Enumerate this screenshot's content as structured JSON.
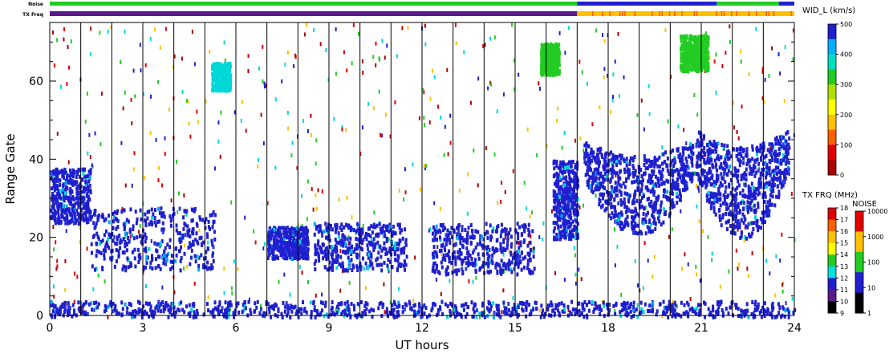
{
  "chart_data": {
    "type": "heatmap",
    "xlabel": "UT hours",
    "ylabel": "Range Gate",
    "xlim": [
      0,
      24
    ],
    "ylim": [
      0,
      75
    ],
    "x_ticks": [
      0,
      3,
      6,
      9,
      12,
      15,
      18,
      21,
      24
    ],
    "y_ticks": [
      0,
      20,
      40,
      60
    ],
    "x_tick_labels": [
      "0",
      "3",
      "6",
      "9",
      "12",
      "15",
      "18",
      "21",
      "24"
    ],
    "y_tick_labels": [
      "0",
      "20",
      "40",
      "60"
    ],
    "scan_line_hours": [
      1,
      2,
      3,
      4,
      5,
      6,
      7,
      8,
      9,
      10,
      11,
      12,
      13,
      14,
      15,
      16,
      17,
      18,
      19,
      20,
      21,
      22,
      23
    ],
    "top_bars": {
      "noise_label": "Noise",
      "txfreq_label": "TX Freq",
      "noise_segments": [
        {
          "start": 0,
          "end": 17,
          "color": "#22cc22"
        },
        {
          "start": 17,
          "end": 21.5,
          "color": "#1f1fd0"
        },
        {
          "start": 21.5,
          "end": 23.5,
          "color": "#22cc22"
        },
        {
          "start": 23.5,
          "end": 24,
          "color": "#1f1fd0"
        }
      ],
      "txfreq_segments": [
        {
          "start": 0,
          "end": 17,
          "color": "#5a1a8c"
        },
        {
          "start": 17,
          "end": 24,
          "color": "#ffc000"
        }
      ]
    },
    "regions": [
      {
        "name": "early-cluster",
        "x": [
          0,
          1.3
        ],
        "y": [
          24,
          38
        ],
        "color": "#1f1fd0"
      },
      {
        "name": "band-1",
        "x": [
          1.3,
          5.3
        ],
        "y": [
          12,
          28
        ],
        "color": "#1f1fd0"
      },
      {
        "name": "band-2",
        "x": [
          7,
          8.3
        ],
        "y": [
          15,
          23
        ],
        "color": "#1f1fd0"
      },
      {
        "name": "band-3",
        "x": [
          8.5,
          11.5
        ],
        "y": [
          12,
          24
        ],
        "color": "#1f1fd0"
      },
      {
        "name": "band-4",
        "x": [
          12.3,
          15.6
        ],
        "y": [
          11,
          24
        ],
        "color": "#1f1fd0"
      },
      {
        "name": "late-cluster",
        "x": [
          16.2,
          17
        ],
        "y": [
          20,
          40
        ],
        "color": "#1f1fd0"
      },
      {
        "name": "arc-1",
        "x": [
          17.2,
          20.7
        ],
        "y": [
          21,
          45
        ],
        "color": "#1f1fd0"
      },
      {
        "name": "arc-2",
        "x": [
          20.8,
          23.8
        ],
        "y": [
          20,
          48
        ],
        "color": "#1f1fd0"
      },
      {
        "name": "ground-band",
        "x": [
          0,
          24
        ],
        "y": [
          0,
          4
        ],
        "color": "#1f1fd0"
      },
      {
        "name": "high-patch-1",
        "x": [
          15.8,
          16.4
        ],
        "y": [
          62,
          70
        ],
        "color": "#22cc22"
      },
      {
        "name": "high-patch-2",
        "x": [
          20.3,
          21.2
        ],
        "y": [
          63,
          72
        ],
        "color": "#22cc22"
      },
      {
        "name": "mid-patch",
        "x": [
          5.2,
          5.8
        ],
        "y": [
          58,
          65
        ],
        "color": "#00d8d8"
      }
    ],
    "colorbars": {
      "width": {
        "title": "WID_L (km/s)",
        "ticks": [
          "500",
          "400",
          "300",
          "200",
          "100",
          "0"
        ],
        "colors": [
          "#1f1fd0",
          "#00b0ff",
          "#00e0c0",
          "#22cc22",
          "#b0e000",
          "#ffff00",
          "#ffc000",
          "#ff6000",
          "#e00000",
          "#b00000"
        ]
      },
      "txfreq": {
        "title": "TX FRQ (MHz)",
        "ticks": [
          "18",
          "17",
          "16",
          "15",
          "14",
          "13",
          "12",
          "11",
          "10",
          "9"
        ],
        "colors": [
          "#e00000",
          "#ff6000",
          "#ffc000",
          "#ffff00",
          "#22cc22",
          "#00e0e0",
          "#1f1fd0",
          "#5a1a8c",
          "#000000"
        ]
      },
      "noise": {
        "title": "NOISE",
        "ticks": [
          "10000",
          "1000",
          "100",
          "10",
          "1"
        ],
        "colors": [
          "#e00000",
          "#ffc000",
          "#22cc22",
          "#1f1fd0",
          "#000000"
        ]
      }
    }
  }
}
